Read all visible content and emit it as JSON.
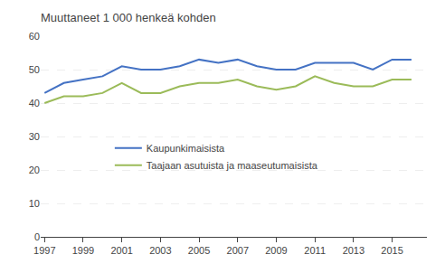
{
  "chart_data": {
    "type": "line",
    "title": "Muuttaneet 1 000 henkeä kohden",
    "x": [
      1997,
      1998,
      1999,
      2000,
      2001,
      2002,
      2003,
      2004,
      2005,
      2006,
      2007,
      2008,
      2009,
      2010,
      2011,
      2012,
      2013,
      2014,
      2015,
      2016
    ],
    "series": [
      {
        "name": "Kaupunkimaisista",
        "color": "#4472C4",
        "values": [
          43,
          46,
          47,
          48,
          51,
          50,
          50,
          51,
          53,
          52,
          53,
          51,
          50,
          50,
          52,
          52,
          52,
          50,
          53,
          53
        ]
      },
      {
        "name": "Taajaan asutuista ja maaseutumaisista",
        "color": "#9BBB59",
        "values": [
          40,
          42,
          42,
          43,
          46,
          43,
          43,
          45,
          46,
          46,
          47,
          45,
          44,
          45,
          48,
          46,
          45,
          45,
          47,
          47
        ]
      }
    ],
    "xlim": [
      1996.8,
      2016.8
    ],
    "xticks": [
      1997,
      1999,
      2001,
      2003,
      2005,
      2007,
      2009,
      2011,
      2013,
      2015
    ],
    "ylim": [
      0,
      60
    ],
    "yticks": [
      0,
      10,
      20,
      30,
      40,
      50,
      60
    ],
    "grid": "y",
    "legend": "center left"
  }
}
